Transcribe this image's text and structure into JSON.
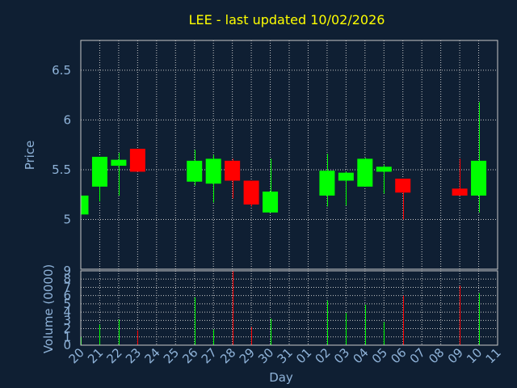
{
  "colors": {
    "background": "#0f1f33",
    "title": "#ffff00",
    "text": "#8fb3d9",
    "grid": "#c8c8c8",
    "up": "#00ff00",
    "down": "#ff0000"
  },
  "chart_data": {
    "type": "candlestick",
    "title": "LEE - last updated 10/02/2026",
    "xlabel": "Day",
    "ylabel_price": "Price",
    "ylabel_volume": "Volume (0000)",
    "x_ticks": [
      "20",
      "21",
      "22",
      "23",
      "24",
      "25",
      "26",
      "27",
      "28",
      "29",
      "30",
      "31",
      "01",
      "02",
      "03",
      "04",
      "05",
      "06",
      "07",
      "08",
      "09",
      "10",
      "11"
    ],
    "price_ticks": [
      "5",
      "5.5",
      "6",
      "6.5"
    ],
    "price_range": [
      4.5,
      6.8
    ],
    "volume_ticks": [
      "0",
      "1",
      "2",
      "3",
      "4",
      "5",
      "6",
      "7",
      "8",
      "9"
    ],
    "volume_range": [
      0,
      9
    ],
    "grid": true,
    "candles": [
      {
        "day": "20",
        "open": 5.05,
        "high": 5.24,
        "low": 5.05,
        "close": 5.24,
        "volume": 1.0
      },
      {
        "day": "21",
        "open": 5.33,
        "high": 5.63,
        "low": 5.18,
        "close": 5.63,
        "volume": 2.5
      },
      {
        "day": "22",
        "open": 5.54,
        "high": 5.67,
        "low": 5.24,
        "close": 5.6,
        "volume": 3.1
      },
      {
        "day": "23",
        "open": 5.71,
        "high": 5.71,
        "low": 5.48,
        "close": 5.48,
        "volume": 1.8
      },
      {
        "day": "26",
        "open": 5.38,
        "high": 5.7,
        "low": 5.34,
        "close": 5.59,
        "volume": 5.8
      },
      {
        "day": "27",
        "open": 5.36,
        "high": 5.65,
        "low": 5.17,
        "close": 5.61,
        "volume": 1.9
      },
      {
        "day": "28",
        "open": 5.59,
        "high": 5.61,
        "low": 5.21,
        "close": 5.39,
        "volume": 9.0
      },
      {
        "day": "29",
        "open": 5.39,
        "high": 5.39,
        "low": 5.13,
        "close": 5.15,
        "volume": 2.2
      },
      {
        "day": "30",
        "open": 5.07,
        "high": 5.61,
        "low": 5.07,
        "close": 5.28,
        "volume": 3.2
      },
      {
        "day": "02",
        "open": 5.24,
        "high": 5.66,
        "low": 5.13,
        "close": 5.49,
        "volume": 5.4
      },
      {
        "day": "03",
        "open": 5.39,
        "high": 5.48,
        "low": 5.14,
        "close": 5.47,
        "volume": 3.9
      },
      {
        "day": "04",
        "open": 5.33,
        "high": 5.62,
        "low": 5.33,
        "close": 5.61,
        "volume": 4.9
      },
      {
        "day": "05",
        "open": 5.48,
        "high": 5.55,
        "low": 5.26,
        "close": 5.53,
        "volume": 2.8
      },
      {
        "day": "06",
        "open": 5.41,
        "high": 5.41,
        "low": 5.0,
        "close": 5.27,
        "volume": 6.0
      },
      {
        "day": "09",
        "open": 5.31,
        "high": 5.61,
        "low": 5.24,
        "close": 5.24,
        "volume": 7.2
      },
      {
        "day": "10",
        "open": 5.24,
        "high": 6.18,
        "low": 5.07,
        "close": 5.59,
        "volume": 6.3
      }
    ]
  }
}
